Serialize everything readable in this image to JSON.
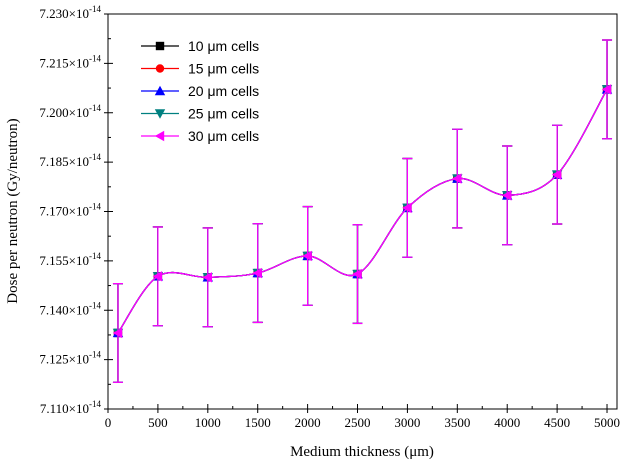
{
  "chart_data": {
    "type": "line",
    "xlabel": "Medium thickness (μm)",
    "ylabel": "Dose per neutron (Gy/neutron)",
    "xlim": [
      0,
      5100
    ],
    "ylim": [
      7.11e-14,
      7.23e-14
    ],
    "x_ticks": [
      0,
      500,
      1000,
      1500,
      2000,
      2500,
      3000,
      3500,
      4000,
      4500,
      5000
    ],
    "x_tick_labels": [
      "0",
      "500",
      "1000",
      "1500",
      "2000",
      "2500",
      "3000",
      "3500",
      "4000",
      "4500",
      "5000"
    ],
    "y_tick_labels": [
      {
        "value": 7.11e-14,
        "mantissa": "7.110×10",
        "exp": "-14"
      },
      {
        "value": 7.125e-14,
        "mantissa": "7.125×10",
        "exp": "-14"
      },
      {
        "value": 7.14e-14,
        "mantissa": "7.140×10",
        "exp": "-14"
      },
      {
        "value": 7.155e-14,
        "mantissa": "7.155×10",
        "exp": "-14"
      },
      {
        "value": 7.17e-14,
        "mantissa": "7.170×10",
        "exp": "-14"
      },
      {
        "value": 7.185e-14,
        "mantissa": "7.185×10",
        "exp": "-14"
      },
      {
        "value": 7.2e-14,
        "mantissa": "7.200×10",
        "exp": "-14"
      },
      {
        "value": 7.215e-14,
        "mantissa": "7.215×10",
        "exp": "-14"
      },
      {
        "value": 7.23e-14,
        "mantissa": "7.230×10",
        "exp": "-14"
      }
    ],
    "grid": false,
    "legend_position": "top-left",
    "x": [
      100,
      500,
      1000,
      1500,
      2000,
      2500,
      3000,
      3500,
      4000,
      4500,
      5000
    ],
    "series": [
      {
        "name": "10 μm cells",
        "color": "#000000",
        "marker": "square",
        "values": [
          7.1331e-14,
          7.1503e-14,
          7.15e-14,
          7.1513e-14,
          7.1565e-14,
          7.151e-14,
          7.1711e-14,
          7.18e-14,
          7.1749e-14,
          7.1812e-14,
          7.2071e-14
        ],
        "errors": [
          1.5e-16,
          1.5e-16,
          1.5e-16,
          1.5e-16,
          1.5e-16,
          1.5e-16,
          1.5e-16,
          1.5e-16,
          1.5e-16,
          1.5e-16,
          1.5e-16
        ]
      },
      {
        "name": "15 μm cells",
        "color": "#ff0000",
        "marker": "circle",
        "values": [
          7.1331e-14,
          7.1503e-14,
          7.15e-14,
          7.1513e-14,
          7.1565e-14,
          7.151e-14,
          7.1711e-14,
          7.18e-14,
          7.1749e-14,
          7.1812e-14,
          7.2071e-14
        ],
        "errors": [
          1.5e-16,
          1.5e-16,
          1.5e-16,
          1.5e-16,
          1.5e-16,
          1.5e-16,
          1.5e-16,
          1.5e-16,
          1.5e-16,
          1.5e-16,
          1.5e-16
        ]
      },
      {
        "name": "20 μm cells",
        "color": "#0000ff",
        "marker": "triangle-up",
        "values": [
          7.1331e-14,
          7.1503e-14,
          7.15e-14,
          7.1513e-14,
          7.1565e-14,
          7.151e-14,
          7.1711e-14,
          7.18e-14,
          7.1749e-14,
          7.1812e-14,
          7.2071e-14
        ],
        "errors": [
          1.5e-16,
          1.5e-16,
          1.5e-16,
          1.5e-16,
          1.5e-16,
          1.5e-16,
          1.5e-16,
          1.5e-16,
          1.5e-16,
          1.5e-16,
          1.5e-16
        ]
      },
      {
        "name": "25 μm cells",
        "color": "#008080",
        "marker": "triangle-down",
        "values": [
          7.1331e-14,
          7.1503e-14,
          7.15e-14,
          7.1513e-14,
          7.1565e-14,
          7.151e-14,
          7.1711e-14,
          7.18e-14,
          7.1749e-14,
          7.1812e-14,
          7.2071e-14
        ],
        "errors": [
          1.5e-16,
          1.5e-16,
          1.5e-16,
          1.5e-16,
          1.5e-16,
          1.5e-16,
          1.5e-16,
          1.5e-16,
          1.5e-16,
          1.5e-16,
          1.5e-16
        ]
      },
      {
        "name": "30 μm cells",
        "color": "#ff00ff",
        "marker": "triangle-left",
        "values": [
          7.1331e-14,
          7.1503e-14,
          7.15e-14,
          7.1513e-14,
          7.1565e-14,
          7.151e-14,
          7.1711e-14,
          7.18e-14,
          7.1749e-14,
          7.1812e-14,
          7.2071e-14
        ],
        "errors": [
          1.5e-16,
          1.5e-16,
          1.5e-16,
          1.5e-16,
          1.5e-16,
          1.5e-16,
          1.5e-16,
          1.5e-16,
          1.5e-16,
          1.5e-16,
          1.5e-16
        ]
      }
    ]
  }
}
